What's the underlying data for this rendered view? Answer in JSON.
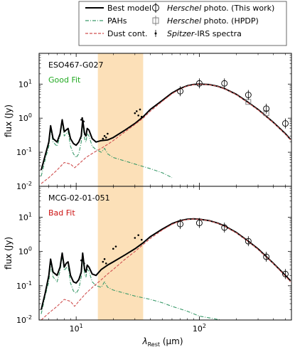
{
  "legend": {
    "items": [
      {
        "label": "Best model",
        "symbol": "line-black"
      },
      {
        "label": "PAHs",
        "symbol": "dashdot-green"
      },
      {
        "label": "Dust cont.",
        "symbol": "dashed-red"
      },
      {
        "label_italic": "Herschel",
        "label_rest": " photo. (This work)",
        "symbol": "circle-errorbar"
      },
      {
        "label_italic": "Herschel",
        "label_rest": " photo. (HPDP)",
        "symbol": "square-errorbar"
      },
      {
        "label_italic": "Spitzer",
        "label_rest": "-IRS spectra",
        "symbol": "dot-errorbar"
      }
    ]
  },
  "axes": {
    "ylabel": "flux (Jy)",
    "xlabel_main": "λ",
    "xlabel_sub": "Rest",
    "xlabel_unit": " (μm)",
    "xtick_labels": [
      "10",
      "10",
      "2"
    ],
    "ytick_labels": [
      "10",
      "10",
      "10",
      "10"
    ],
    "ytick_exponents": [
      "1",
      "0",
      "-1",
      "-2"
    ]
  },
  "chart_data": [
    {
      "type": "line",
      "panel_title": "ESO467-G027",
      "fit_label": "Good Fit",
      "fit_color": "#22aa22",
      "xscale": "log",
      "yscale": "log",
      "xlim": [
        5,
        560
      ],
      "ylim": [
        0.01,
        80
      ],
      "highlight_band": [
        15,
        35
      ],
      "highlight_color": "#fce0b8",
      "series": [
        {
          "name": "Best model",
          "color": "#000000",
          "x": [
            5.2,
            5.6,
            6.0,
            6.2,
            6.5,
            7.0,
            7.4,
            7.7,
            8.0,
            8.3,
            8.6,
            9.0,
            9.5,
            10.0,
            10.5,
            11.0,
            11.3,
            11.7,
            12.0,
            12.3,
            12.7,
            13.5,
            14.5,
            16.0,
            18.0,
            20.0,
            25.0,
            30.0,
            35.0,
            40.0,
            50.0,
            60.0,
            70.0,
            80.0,
            90.0,
            100.0,
            120.0,
            140.0,
            160.0,
            200.0,
            250.0,
            300.0,
            400.0,
            500.0,
            550.0
          ],
          "y": [
            0.03,
            0.08,
            0.2,
            0.6,
            0.25,
            0.2,
            0.35,
            0.9,
            0.4,
            0.45,
            0.5,
            0.25,
            0.18,
            0.16,
            0.2,
            0.3,
            0.9,
            0.35,
            0.3,
            0.5,
            0.45,
            0.25,
            0.2,
            0.22,
            0.23,
            0.27,
            0.45,
            0.7,
            1.1,
            1.8,
            3.3,
            5.5,
            7.5,
            9.0,
            9.8,
            10.0,
            9.7,
            8.7,
            7.4,
            5.0,
            2.9,
            1.8,
            0.75,
            0.35,
            0.24
          ]
        },
        {
          "name": "PAHs",
          "color": "#3a9a6a",
          "x": [
            5.2,
            5.6,
            6.0,
            6.2,
            6.5,
            7.0,
            7.4,
            7.7,
            8.0,
            8.3,
            8.6,
            9.0,
            9.5,
            10.0,
            10.5,
            11.0,
            11.3,
            11.7,
            12.0,
            12.3,
            12.7,
            13.5,
            14.5,
            16.0,
            17.0,
            18.0,
            20.0,
            25.0,
            30.0,
            40.0,
            50.0,
            60.0
          ],
          "y": [
            0.02,
            0.06,
            0.15,
            0.5,
            0.2,
            0.15,
            0.3,
            0.8,
            0.3,
            0.35,
            0.4,
            0.15,
            0.09,
            0.07,
            0.09,
            0.2,
            0.75,
            0.25,
            0.2,
            0.35,
            0.3,
            0.15,
            0.12,
            0.1,
            0.13,
            0.09,
            0.07,
            0.055,
            0.045,
            0.033,
            0.025,
            0.018
          ]
        },
        {
          "name": "Dust cont.",
          "color": "#d05050",
          "x": [
            5.2,
            6.0,
            7.0,
            8.0,
            9.0,
            9.7,
            10.5,
            12.0,
            14.0,
            16.0,
            18.0,
            20.0,
            25.0,
            30.0,
            35.0,
            40.0,
            50.0,
            60.0,
            70.0,
            80.0,
            90.0,
            100.0,
            120.0,
            140.0,
            160.0,
            200.0,
            250.0,
            300.0,
            400.0,
            500.0,
            550.0
          ],
          "y": [
            0.012,
            0.018,
            0.03,
            0.05,
            0.045,
            0.035,
            0.045,
            0.07,
            0.1,
            0.13,
            0.17,
            0.22,
            0.4,
            0.65,
            1.0,
            1.6,
            3.1,
            5.2,
            7.2,
            8.8,
            9.6,
            9.9,
            9.6,
            8.6,
            7.3,
            4.9,
            2.8,
            1.75,
            0.73,
            0.34,
            0.23
          ]
        }
      ],
      "herschel_this_work": {
        "x": [
          70,
          100,
          160,
          250,
          350,
          500
        ],
        "y": [
          6.2,
          10.5,
          10.5,
          4.8,
          1.9,
          0.7
        ]
      },
      "herschel_hpdp": {
        "x": [
          250,
          350
        ],
        "y": [
          3.0,
          1.4
        ]
      },
      "spitzer_points": {
        "x": [
          11.0,
          11.2,
          11.5,
          16.5,
          17.0,
          17.5,
          18.0,
          30.0,
          31.0,
          32.0,
          33.0,
          34.0
        ],
        "y": [
          0.9,
          1.0,
          0.8,
          0.25,
          0.3,
          0.27,
          0.35,
          1.4,
          1.6,
          1.2,
          1.8,
          1.1
        ]
      }
    },
    {
      "type": "line",
      "panel_title": "MCG-02-01-051",
      "fit_label": "Bad Fit",
      "fit_color": "#cc1111",
      "xscale": "log",
      "yscale": "log",
      "xlim": [
        5,
        560
      ],
      "ylim": [
        0.01,
        80
      ],
      "highlight_band": [
        15,
        35
      ],
      "highlight_color": "#fce0b8",
      "series": [
        {
          "name": "Best model",
          "color": "#000000",
          "x": [
            5.2,
            5.6,
            6.0,
            6.2,
            6.5,
            7.0,
            7.4,
            7.7,
            8.0,
            8.3,
            8.6,
            9.0,
            9.5,
            10.0,
            10.5,
            11.0,
            11.3,
            11.7,
            12.0,
            12.3,
            12.7,
            13.5,
            14.5,
            16.0,
            18.0,
            20.0,
            25.0,
            30.0,
            35.0,
            40.0,
            50.0,
            60.0,
            70.0,
            80.0,
            90.0,
            100.0,
            120.0,
            140.0,
            160.0,
            200.0,
            250.0,
            300.0,
            400.0,
            500.0,
            550.0
          ],
          "y": [
            0.02,
            0.06,
            0.2,
            0.6,
            0.25,
            0.2,
            0.35,
            0.9,
            0.35,
            0.45,
            0.5,
            0.2,
            0.13,
            0.12,
            0.15,
            0.25,
            0.9,
            0.3,
            0.25,
            0.4,
            0.35,
            0.22,
            0.2,
            0.3,
            0.4,
            0.5,
            0.8,
            1.2,
            1.8,
            2.7,
            4.5,
            6.5,
            8.0,
            8.8,
            9.0,
            8.8,
            8.0,
            6.8,
            5.6,
            3.6,
            2.0,
            1.2,
            0.45,
            0.2,
            0.14
          ]
        },
        {
          "name": "PAHs",
          "color": "#3a9a6a",
          "x": [
            5.2,
            5.6,
            6.0,
            6.2,
            6.5,
            7.0,
            7.4,
            7.7,
            8.0,
            8.3,
            8.6,
            9.0,
            9.5,
            10.0,
            10.5,
            11.0,
            11.3,
            11.7,
            12.0,
            12.3,
            12.7,
            13.5,
            14.5,
            16.0,
            17.0,
            18.0,
            20.0,
            25.0,
            30.0,
            40.0,
            50.0,
            60.0,
            80.0,
            100.0,
            150.0
          ],
          "y": [
            0.015,
            0.05,
            0.13,
            0.45,
            0.18,
            0.13,
            0.27,
            0.75,
            0.28,
            0.33,
            0.38,
            0.12,
            0.07,
            0.06,
            0.08,
            0.18,
            0.7,
            0.22,
            0.18,
            0.3,
            0.27,
            0.13,
            0.1,
            0.09,
            0.13,
            0.09,
            0.075,
            0.06,
            0.05,
            0.04,
            0.032,
            0.025,
            0.018,
            0.013,
            0.01
          ]
        },
        {
          "name": "Dust cont.",
          "color": "#d05050",
          "x": [
            5.2,
            6.0,
            7.0,
            8.0,
            9.0,
            9.7,
            10.5,
            12.0,
            14.0,
            16.0,
            18.0,
            20.0,
            25.0,
            30.0,
            35.0,
            40.0,
            50.0,
            60.0,
            70.0,
            80.0,
            90.0,
            100.0,
            120.0,
            140.0,
            160.0,
            200.0,
            250.0,
            300.0,
            400.0,
            500.0,
            550.0
          ],
          "y": [
            0.01,
            0.016,
            0.025,
            0.04,
            0.035,
            0.025,
            0.035,
            0.06,
            0.1,
            0.15,
            0.22,
            0.3,
            0.6,
            1.0,
            1.6,
            2.4,
            4.2,
            6.2,
            7.8,
            8.6,
            8.9,
            8.7,
            7.9,
            6.7,
            5.5,
            3.5,
            1.95,
            1.15,
            0.44,
            0.19,
            0.13
          ]
        }
      ],
      "herschel_this_work": {
        "x": [
          70,
          100,
          160,
          250,
          350,
          500
        ],
        "y": [
          6.3,
          6.8,
          5.0,
          2.0,
          0.7,
          0.22
        ]
      },
      "herschel_hpdp": {
        "x": [],
        "y": []
      },
      "spitzer_points": {
        "x": [
          11.0,
          11.3,
          11.6,
          16.5,
          17.0,
          17.5,
          20.0,
          21.0,
          30.0,
          32.0,
          34.0
        ],
        "y": [
          0.55,
          0.7,
          0.45,
          0.5,
          0.6,
          0.45,
          1.2,
          1.4,
          2.5,
          3.0,
          2.2
        ]
      }
    }
  ]
}
